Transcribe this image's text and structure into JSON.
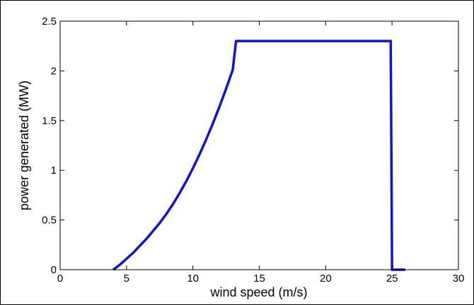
{
  "chart_data": {
    "type": "line",
    "title": "",
    "xlabel": "wind speed  (m/s)",
    "ylabel": "power generated  (MW)",
    "xlim": [
      0,
      30
    ],
    "ylim": [
      0,
      2.5
    ],
    "xticks": [
      0,
      5,
      10,
      15,
      20,
      25,
      30
    ],
    "yticks": [
      0,
      0.5,
      1,
      1.5,
      2,
      2.5
    ],
    "xtick_labels": [
      "0",
      "5",
      "10",
      "15",
      "20",
      "25",
      "30"
    ],
    "ytick_labels": [
      "0",
      "0.5",
      "1",
      "1.5",
      "2",
      "2.5"
    ],
    "grid": false,
    "series": [
      {
        "color": "#1010e0",
        "x": [
          4,
          4.5,
          5,
          5.5,
          6,
          6.5,
          7,
          7.5,
          8,
          8.5,
          9,
          9.5,
          10,
          10.5,
          11,
          11.5,
          12,
          12.5,
          13,
          13.25,
          14,
          16,
          18,
          20,
          22,
          24,
          24.9,
          25,
          25.5,
          26
        ],
        "y": [
          0,
          0.05,
          0.11,
          0.17,
          0.24,
          0.31,
          0.39,
          0.47,
          0.56,
          0.66,
          0.77,
          0.89,
          1.02,
          1.16,
          1.31,
          1.47,
          1.64,
          1.82,
          2.01,
          2.3,
          2.3,
          2.3,
          2.3,
          2.3,
          2.3,
          2.3,
          2.3,
          0,
          0,
          0
        ]
      }
    ]
  }
}
